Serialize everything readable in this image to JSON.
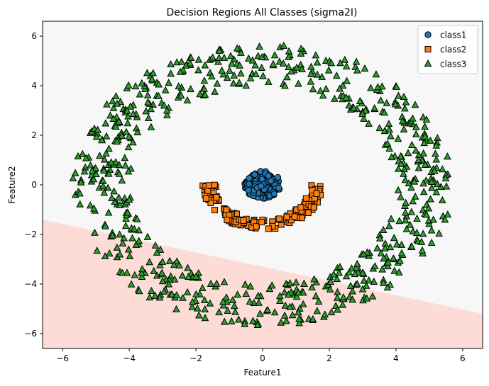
{
  "chart_data": {
    "type": "scatter",
    "title": "Decision Regions All Classes (sigma2I)",
    "xlabel": "Feature1",
    "ylabel": "Feature2",
    "xlim": [
      -6.6,
      6.6
    ],
    "ylim": [
      -6.6,
      6.6
    ],
    "xticks": [
      -6,
      -4,
      -2,
      0,
      2,
      4,
      6
    ],
    "yticks": [
      -6,
      -4,
      -2,
      0,
      2,
      4,
      6
    ],
    "grid": false,
    "legend_position": "top-right",
    "decision_regions": [
      {
        "class": "class3",
        "color": "#f7f7f7",
        "side": "above boundary"
      },
      {
        "class": "class1",
        "color": "#fddcd8",
        "side": "below boundary"
      }
    ],
    "decision_boundary": {
      "x": [
        -6.6,
        6.6
      ],
      "y": [
        -1.4,
        -5.2
      ]
    },
    "series": [
      {
        "name": "class1",
        "marker": "circle",
        "color": "#1f77b4",
        "description": "dense cluster centered at origin",
        "center": [
          0,
          0
        ],
        "radius_range": [
          0,
          0.55
        ],
        "count": 150
      },
      {
        "name": "class2",
        "marker": "square",
        "color": "#ff7f0e",
        "description": "lower half-ring below origin",
        "center": [
          0,
          0
        ],
        "radius_range": [
          1.4,
          1.8
        ],
        "angle_range_deg": [
          180,
          360
        ],
        "count": 150
      },
      {
        "name": "class3",
        "marker": "triangle",
        "color": "#2ca02c",
        "description": "outer ring around origin",
        "center": [
          0,
          0
        ],
        "radius_range": [
          4.0,
          5.7
        ],
        "angle_range_deg": [
          0,
          360
        ],
        "count": 700
      }
    ]
  }
}
